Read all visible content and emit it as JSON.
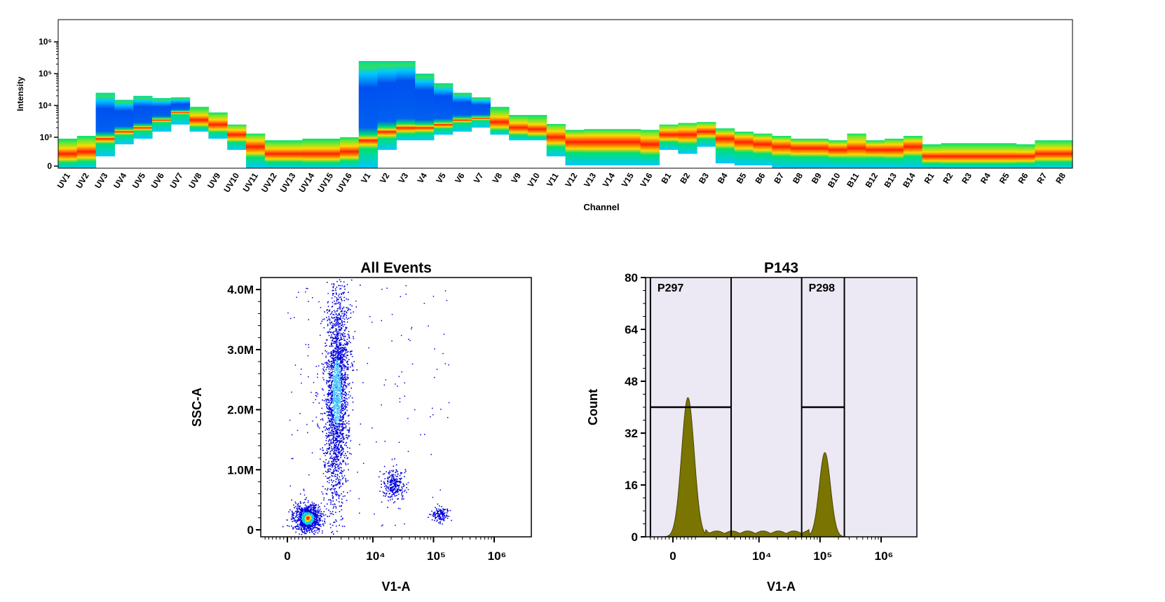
{
  "chart_data": [
    {
      "type": "heatmap",
      "title": "",
      "xlabel": "Channel",
      "ylabel": "Intensity",
      "y_scale": "log",
      "y_ticks": [
        {
          "label": "0",
          "value": 0
        },
        {
          "label": "10³",
          "value": 1000
        },
        {
          "label": "10⁴",
          "value": 10000
        },
        {
          "label": "10⁵",
          "value": 100000
        },
        {
          "label": "10⁶",
          "value": 1000000
        }
      ],
      "channels": [
        "UV1",
        "UV2",
        "UV3",
        "UV4",
        "UV5",
        "UV6",
        "UV7",
        "UV8",
        "UV9",
        "UV10",
        "UV11",
        "UV12",
        "UV13",
        "UV14",
        "UV15",
        "UV16",
        "V1",
        "V2",
        "V3",
        "V4",
        "V5",
        "V6",
        "V7",
        "V8",
        "V9",
        "V10",
        "V11",
        "V12",
        "V13",
        "V14",
        "V15",
        "V16",
        "B1",
        "B2",
        "B3",
        "B4",
        "B5",
        "B6",
        "B7",
        "B8",
        "B9",
        "B10",
        "B11",
        "B12",
        "B13",
        "B14",
        "R1",
        "R2",
        "R3",
        "R4",
        "R5",
        "R6",
        "R7",
        "R8"
      ],
      "series": [
        {
          "name": "median",
          "values": [
            300,
            350,
            900,
            1500,
            2000,
            3500,
            6000,
            3500,
            2500,
            1200,
            500,
            300,
            300,
            300,
            300,
            350,
            800,
            1500,
            2000,
            2000,
            2500,
            3500,
            4000,
            3000,
            2000,
            1800,
            1000,
            700,
            700,
            700,
            700,
            600,
            1200,
            1200,
            1500,
            900,
            700,
            600,
            500,
            450,
            450,
            400,
            450,
            400,
            400,
            500,
            250,
            250,
            250,
            250,
            250,
            250,
            300,
            300
          ]
        },
        {
          "name": "upper",
          "values": [
            900,
            1100,
            25000,
            15000,
            20000,
            17000,
            18000,
            9000,
            6000,
            2500,
            1300,
            800,
            800,
            900,
            900,
            1000,
            250000,
            250000,
            250000,
            100000,
            50000,
            25000,
            18000,
            9000,
            5000,
            5000,
            2600,
            1700,
            1800,
            1800,
            1800,
            1700,
            2500,
            2800,
            3000,
            1900,
            1500,
            1300,
            1100,
            900,
            900,
            800,
            1300,
            800,
            900,
            1100,
            600,
            650,
            650,
            650,
            650,
            600,
            800,
            800
          ]
        },
        {
          "name": "lower",
          "values": [
            0,
            0,
            250,
            600,
            900,
            1500,
            2500,
            1500,
            900,
            400,
            0,
            0,
            0,
            0,
            0,
            0,
            0,
            400,
            800,
            800,
            1200,
            1500,
            2000,
            1200,
            800,
            800,
            250,
            80,
            80,
            80,
            50,
            30,
            400,
            300,
            500,
            150,
            60,
            30,
            0,
            0,
            0,
            0,
            0,
            0,
            0,
            0,
            0,
            0,
            0,
            0,
            0,
            0,
            0,
            0
          ]
        }
      ]
    },
    {
      "type": "scatter",
      "title": "All Events",
      "xlabel": "V1-A",
      "ylabel": "SSC-A",
      "x_scale": "biexponential",
      "x_ticks": [
        "0",
        "10⁴",
        "10⁵",
        "10⁶"
      ],
      "y_ticks": [
        "0",
        "1.0M",
        "2.0M",
        "3.0M",
        "4.0M"
      ],
      "ylim": [
        0,
        4200000
      ],
      "populations": [
        {
          "x": 800,
          "y": 200000,
          "spread_x": 500,
          "spread_y": 120000,
          "density": "high"
        },
        {
          "x": 2500,
          "y": 2300000,
          "spread_x": 1500,
          "spread_y": 900000,
          "density": "high"
        },
        {
          "x": 22000,
          "y": 750000,
          "spread_x": 10000,
          "spread_y": 130000,
          "density": "medium"
        },
        {
          "x": 130000,
          "y": 270000,
          "spread_x": 40000,
          "spread_y": 60000,
          "density": "medium"
        }
      ]
    },
    {
      "type": "area",
      "title": "P143",
      "xlabel": "V1-A",
      "ylabel": "Count",
      "x_scale": "biexponential",
      "x_ticks": [
        "0",
        "10⁴",
        "10⁵",
        "10⁶"
      ],
      "y_ticks": [
        "0",
        "16",
        "32",
        "48",
        "64",
        "80"
      ],
      "ylim": [
        0,
        80
      ],
      "peaks": [
        {
          "x": 600,
          "count": 43
        },
        {
          "x": 120000,
          "count": 26
        }
      ],
      "gates": [
        {
          "name": "P297",
          "range": [
            -900,
            3500
          ],
          "level": 40
        },
        {
          "name": "P298",
          "range": [
            50000,
            250000
          ],
          "level": 40
        }
      ]
    }
  ],
  "colors": {
    "heat_low": "#00c8ff",
    "heat_mid": "#00e070",
    "heat_high": "#ffd800",
    "heat_peak": "#ff1e00",
    "heat_deep": "#0050f0",
    "scatter_dot": "#0000dd",
    "histogram_fill": "#7a7400",
    "gate_fill": "#ece8f4"
  }
}
